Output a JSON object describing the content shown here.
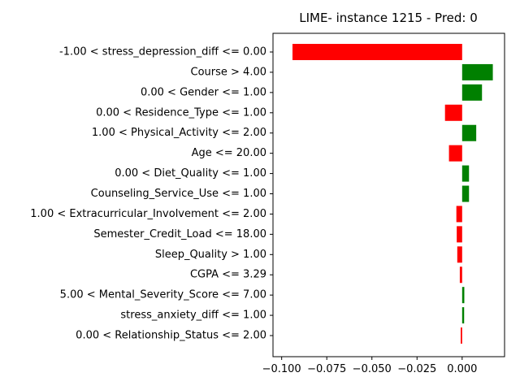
{
  "chart_data": {
    "type": "bar",
    "orientation": "horizontal",
    "title": "LIME- instance 1215 - Pred: 0",
    "xlabel": "",
    "ylabel": "",
    "xlim": [
      -0.1048,
      0.0235
    ],
    "xticks": [
      -0.1,
      -0.075,
      -0.05,
      -0.025,
      0.0
    ],
    "xtick_labels": [
      "−0.100",
      "−0.075",
      "−0.050",
      "−0.025",
      "0.000"
    ],
    "grid": false,
    "legend": "none",
    "positive_color": "#008000",
    "negative_color": "#ff0000",
    "categories": [
      "-1.00 < stress_depression_diff <= 0.00",
      "Course > 4.00",
      "0.00 < Gender <= 1.00",
      "0.00 < Residence_Type <= 1.00",
      "1.00 < Physical_Activity <= 2.00",
      "Age <= 20.00",
      "0.00 < Diet_Quality <= 1.00",
      "Counseling_Service_Use <= 1.00",
      "1.00 < Extracurricular_Involvement <= 2.00",
      "Semester_Credit_Load <= 18.00",
      "Sleep_Quality > 1.00",
      "CGPA <= 3.29",
      "5.00 < Mental_Severity_Score <= 7.00",
      "stress_anxiety_diff <= 1.00",
      "0.00 < Relationship_Status <= 2.00"
    ],
    "values": [
      -0.094,
      0.017,
      0.011,
      -0.0095,
      0.0078,
      -0.0073,
      0.0038,
      0.0038,
      -0.0032,
      -0.003,
      -0.0027,
      -0.0013,
      0.0012,
      0.0011,
      -0.0008
    ]
  }
}
